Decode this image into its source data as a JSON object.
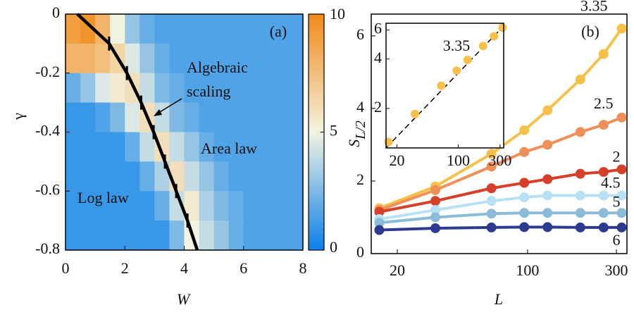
{
  "chart_data": [
    {
      "type": "heatmap",
      "panel_label": "(a)",
      "xlabel": "W",
      "ylabel": "γ",
      "xlim": [
        0,
        8
      ],
      "ylim": [
        -0.8,
        0
      ],
      "xticks": [
        0,
        2,
        4,
        6,
        8
      ],
      "yticks": [
        0,
        -0.2,
        -0.4,
        -0.6,
        -0.8
      ],
      "x": [
        0.25,
        0.75,
        1.25,
        1.75,
        2.25,
        2.75,
        3.25,
        3.75,
        4.25,
        4.75,
        5.25,
        5.75,
        6.25,
        6.75,
        7.25,
        7.75
      ],
      "y": [
        -0.05,
        -0.15,
        -0.25,
        -0.35,
        -0.45,
        -0.55,
        -0.65,
        -0.75
      ],
      "z": [
        [
          9,
          9.5,
          8,
          5,
          3,
          2,
          1.5,
          1.5,
          1.5,
          1.5,
          1.5,
          1.5,
          1.5,
          1.5,
          1.5,
          1.5
        ],
        [
          8,
          8,
          7.5,
          6.5,
          4.5,
          3,
          2,
          1.5,
          1.5,
          1.5,
          1.5,
          1.5,
          1.5,
          1.5,
          1.5,
          1.5
        ],
        [
          2,
          3,
          4.5,
          5.5,
          6,
          4,
          2.5,
          2,
          1.5,
          1.5,
          1.5,
          1.5,
          1.5,
          1.5,
          1.5,
          1.5
        ],
        [
          1,
          1,
          1.5,
          2.5,
          4.5,
          6,
          4,
          2.5,
          2,
          1.5,
          1.5,
          1.5,
          1.5,
          1.5,
          1.5,
          1.5
        ],
        [
          1,
          1,
          1,
          1,
          2,
          4,
          6,
          4,
          3,
          2,
          1.5,
          1.5,
          1.5,
          1.5,
          1.5,
          1.5
        ],
        [
          1,
          1,
          1,
          1,
          1,
          2,
          3.5,
          6,
          4,
          3,
          2,
          1.5,
          1.5,
          1.5,
          1.5,
          1.5
        ],
        [
          1,
          1,
          1,
          1,
          1,
          1,
          2,
          4,
          5.5,
          3.5,
          2.5,
          2,
          1.5,
          1.5,
          1.5,
          1.5
        ],
        [
          1,
          1,
          1,
          1,
          1,
          1,
          1,
          2.5,
          5,
          4,
          3,
          2,
          1.5,
          1.5,
          1.5,
          1.5
        ]
      ],
      "clim": [
        0,
        10
      ],
      "cticks": [
        0,
        5,
        10
      ],
      "colormap": [
        "#0a80e8",
        "#f3f3e2",
        "#f08a18"
      ],
      "critical": {
        "color": "#000000",
        "x": [
          0.4,
          1.47,
          2.07,
          2.55,
          2.97,
          3.35,
          3.73,
          4.11,
          4.44
        ],
        "values": [
          0,
          -0.1,
          -0.2,
          -0.3,
          -0.4,
          -0.5,
          -0.6,
          -0.7,
          -0.8
        ]
      },
      "annotations": [
        "Algebraic",
        "scaling",
        "Area law",
        "Log law"
      ]
    },
    {
      "type": "line",
      "panel_label": "(b)",
      "xlabel": "L",
      "ylabel": "S",
      "ylabel_subscript": "L/2",
      "xscale": "log",
      "xlim": [
        15,
        330
      ],
      "ylim": [
        0,
        6.6
      ],
      "xticks": [
        20,
        100,
        300
      ],
      "yticks": [
        0,
        2,
        4,
        6
      ],
      "x": [
        16,
        32,
        64,
        96,
        128,
        192,
        256,
        320
      ],
      "series": [
        {
          "name": "3.35",
          "color": "#f7c04a",
          "values": [
            1.25,
            1.85,
            2.75,
            3.4,
            3.95,
            4.8,
            5.5,
            6.2
          ]
        },
        {
          "name": "2.5",
          "color": "#ef9058",
          "values": [
            1.2,
            1.75,
            2.4,
            2.8,
            3.0,
            3.35,
            3.55,
            3.75
          ]
        },
        {
          "name": "2",
          "color": "#d6402b",
          "values": [
            1.15,
            1.45,
            1.8,
            1.95,
            2.05,
            2.2,
            2.25,
            2.32
          ]
        },
        {
          "name": "4.5",
          "color": "#b8e0f5",
          "values": [
            0.95,
            1.2,
            1.45,
            1.55,
            1.6,
            1.6,
            1.6,
            1.6
          ]
        },
        {
          "name": "5",
          "color": "#8abbd9",
          "values": [
            0.85,
            1.0,
            1.1,
            1.12,
            1.12,
            1.12,
            1.12,
            1.12
          ]
        },
        {
          "name": "6",
          "color": "#2c3a8f",
          "values": [
            0.65,
            0.7,
            0.72,
            0.73,
            0.73,
            0.72,
            0.72,
            0.72
          ]
        }
      ],
      "inset": {
        "xscale": "log",
        "yscale": "log",
        "xlim": [
          15,
          330
        ],
        "ylim": [
          1.15,
          6.6
        ],
        "xticks": [
          20,
          100,
          300
        ],
        "yticks": [
          2,
          4,
          6
        ],
        "fit": {
          "x": [
            15,
            330
          ],
          "values": [
            1.15,
            6.35
          ]
        }
      }
    }
  ]
}
